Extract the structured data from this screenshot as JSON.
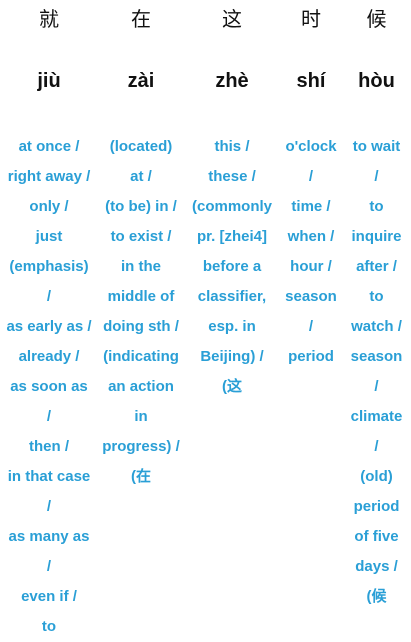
{
  "columns": [
    {
      "hanzi": "就",
      "pinyin": "jiù",
      "definition_lines": [
        "at once /",
        "right away /",
        "only /",
        "just",
        "(emphasis)",
        "/",
        "as early as /",
        "already /",
        "as soon as",
        "/",
        "then /",
        "in that case",
        "/",
        "as many as",
        "/",
        "even if /",
        "to"
      ]
    },
    {
      "hanzi": "在",
      "pinyin": "zài",
      "definition_lines": [
        "(located)",
        "at /",
        "(to be) in /",
        "to exist /",
        "in the",
        "middle of",
        "doing sth /",
        "(indicating",
        "an action",
        "in",
        "progress) /",
        "(在"
      ]
    },
    {
      "hanzi": "这",
      "pinyin": "zhè",
      "definition_lines": [
        "this /",
        "these /",
        "(commonly",
        "pr. [zhei4]",
        "before a",
        "classifier,",
        "esp. in",
        "Beijing) /",
        "(这"
      ]
    },
    {
      "hanzi": "时",
      "pinyin": "shí",
      "definition_lines": [
        "o'clock",
        "/",
        "time /",
        "when /",
        "hour /",
        "season",
        "/",
        "period"
      ]
    },
    {
      "hanzi": "候",
      "pinyin": "hòu",
      "definition_lines": [
        "to wait",
        "/",
        "to",
        "inquire",
        "after /",
        "to",
        "watch /",
        "season",
        "/",
        "climate",
        "/",
        "(old)",
        "period",
        "of five",
        "days /",
        "(候"
      ]
    }
  ]
}
